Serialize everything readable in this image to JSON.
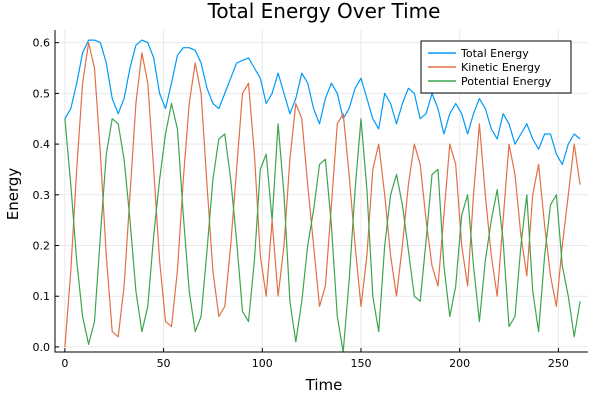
{
  "chart_data": {
    "type": "line",
    "title": "Total Energy Over Time",
    "xlabel": "Time",
    "ylabel": "Energy",
    "xlim": [
      -5,
      265
    ],
    "ylim": [
      -0.01,
      0.625
    ],
    "xticks": [
      0,
      50,
      100,
      150,
      200,
      250
    ],
    "xtick_labels": [
      "0",
      "50",
      "100",
      "150",
      "200",
      "250"
    ],
    "yticks": [
      0.0,
      0.1,
      0.2,
      0.3,
      0.4,
      0.5,
      0.6
    ],
    "ytick_labels": [
      "0.0",
      "0.1",
      "0.2",
      "0.3",
      "0.4",
      "0.5",
      "0.6"
    ],
    "grid": true,
    "legend_position": "top-right",
    "series": [
      {
        "name": "Total Energy",
        "color": "#009af9",
        "x": [
          0,
          3,
          6,
          9,
          12,
          15,
          18,
          21,
          24,
          27,
          30,
          33,
          36,
          39,
          42,
          45,
          48,
          51,
          54,
          57,
          60,
          63,
          66,
          69,
          72,
          75,
          78,
          81,
          84,
          87,
          90,
          93,
          96,
          99,
          102,
          105,
          108,
          111,
          114,
          117,
          120,
          123,
          126,
          129,
          132,
          135,
          138,
          141,
          144,
          147,
          150,
          153,
          156,
          159,
          162,
          165,
          168,
          171,
          174,
          177,
          180,
          183,
          186,
          189,
          192,
          195,
          198,
          201,
          204,
          207,
          210,
          213,
          216,
          219,
          222,
          225,
          228,
          231,
          234,
          237,
          240,
          243,
          246,
          249,
          252,
          255,
          258,
          261
        ],
        "y": [
          0.45,
          0.47,
          0.52,
          0.58,
          0.605,
          0.605,
          0.6,
          0.56,
          0.49,
          0.46,
          0.49,
          0.55,
          0.595,
          0.605,
          0.6,
          0.57,
          0.5,
          0.47,
          0.52,
          0.575,
          0.59,
          0.59,
          0.585,
          0.56,
          0.51,
          0.48,
          0.47,
          0.5,
          0.53,
          0.56,
          0.565,
          0.57,
          0.55,
          0.53,
          0.48,
          0.5,
          0.54,
          0.5,
          0.46,
          0.49,
          0.54,
          0.52,
          0.47,
          0.44,
          0.49,
          0.52,
          0.5,
          0.45,
          0.47,
          0.51,
          0.53,
          0.49,
          0.45,
          0.43,
          0.5,
          0.48,
          0.44,
          0.48,
          0.51,
          0.5,
          0.45,
          0.46,
          0.5,
          0.47,
          0.42,
          0.46,
          0.48,
          0.46,
          0.42,
          0.46,
          0.49,
          0.47,
          0.43,
          0.41,
          0.46,
          0.44,
          0.4,
          0.42,
          0.44,
          0.41,
          0.39,
          0.42,
          0.42,
          0.38,
          0.36,
          0.4,
          0.42,
          0.41
        ]
      },
      {
        "name": "Kinetic Energy",
        "color": "#e26f46",
        "x": [
          0,
          3,
          6,
          9,
          12,
          15,
          18,
          21,
          24,
          27,
          30,
          33,
          36,
          39,
          42,
          45,
          48,
          51,
          54,
          57,
          60,
          63,
          66,
          69,
          72,
          75,
          78,
          81,
          84,
          87,
          90,
          93,
          96,
          99,
          102,
          105,
          108,
          111,
          114,
          117,
          120,
          123,
          126,
          129,
          132,
          135,
          138,
          141,
          144,
          147,
          150,
          153,
          156,
          159,
          162,
          165,
          168,
          171,
          174,
          177,
          180,
          183,
          186,
          189,
          192,
          195,
          198,
          201,
          204,
          207,
          210,
          213,
          216,
          219,
          222,
          225,
          228,
          231,
          234,
          237,
          240,
          243,
          246,
          249,
          252,
          255,
          258,
          261
        ],
        "y": [
          0.0,
          0.15,
          0.35,
          0.52,
          0.6,
          0.55,
          0.38,
          0.18,
          0.03,
          0.02,
          0.12,
          0.3,
          0.48,
          0.58,
          0.52,
          0.35,
          0.17,
          0.05,
          0.04,
          0.15,
          0.33,
          0.48,
          0.56,
          0.5,
          0.32,
          0.15,
          0.06,
          0.08,
          0.2,
          0.35,
          0.5,
          0.52,
          0.38,
          0.18,
          0.1,
          0.25,
          0.1,
          0.2,
          0.37,
          0.48,
          0.45,
          0.32,
          0.2,
          0.08,
          0.12,
          0.28,
          0.44,
          0.46,
          0.34,
          0.2,
          0.08,
          0.18,
          0.35,
          0.4,
          0.3,
          0.18,
          0.1,
          0.2,
          0.32,
          0.4,
          0.36,
          0.25,
          0.16,
          0.12,
          0.26,
          0.4,
          0.36,
          0.2,
          0.12,
          0.3,
          0.44,
          0.3,
          0.18,
          0.1,
          0.25,
          0.4,
          0.34,
          0.22,
          0.14,
          0.3,
          0.36,
          0.24,
          0.14,
          0.08,
          0.2,
          0.3,
          0.4,
          0.32
        ]
      },
      {
        "name": "Potential Energy",
        "color": "#3ea44e",
        "x": [
          0,
          3,
          6,
          9,
          12,
          15,
          18,
          21,
          24,
          27,
          30,
          33,
          36,
          39,
          42,
          45,
          48,
          51,
          54,
          57,
          60,
          63,
          66,
          69,
          72,
          75,
          78,
          81,
          84,
          87,
          90,
          93,
          96,
          99,
          102,
          105,
          108,
          111,
          114,
          117,
          120,
          123,
          126,
          129,
          132,
          135,
          138,
          141,
          144,
          147,
          150,
          153,
          156,
          159,
          162,
          165,
          168,
          171,
          174,
          177,
          180,
          183,
          186,
          189,
          192,
          195,
          198,
          201,
          204,
          207,
          210,
          213,
          216,
          219,
          222,
          225,
          228,
          231,
          234,
          237,
          240,
          243,
          246,
          249,
          252,
          255,
          258,
          261
        ],
        "y": [
          0.45,
          0.32,
          0.17,
          0.06,
          0.005,
          0.05,
          0.22,
          0.38,
          0.45,
          0.44,
          0.37,
          0.25,
          0.11,
          0.03,
          0.08,
          0.22,
          0.33,
          0.42,
          0.48,
          0.43,
          0.26,
          0.11,
          0.03,
          0.06,
          0.19,
          0.33,
          0.41,
          0.42,
          0.33,
          0.21,
          0.07,
          0.05,
          0.17,
          0.35,
          0.38,
          0.25,
          0.44,
          0.3,
          0.09,
          0.01,
          0.09,
          0.2,
          0.27,
          0.36,
          0.37,
          0.24,
          0.06,
          -0.01,
          0.13,
          0.31,
          0.45,
          0.31,
          0.1,
          0.03,
          0.2,
          0.3,
          0.34,
          0.28,
          0.19,
          0.1,
          0.09,
          0.21,
          0.34,
          0.35,
          0.16,
          0.06,
          0.12,
          0.26,
          0.3,
          0.16,
          0.05,
          0.17,
          0.25,
          0.31,
          0.21,
          0.04,
          0.06,
          0.2,
          0.3,
          0.11,
          0.03,
          0.18,
          0.28,
          0.3,
          0.16,
          0.1,
          0.02,
          0.09
        ]
      }
    ]
  }
}
